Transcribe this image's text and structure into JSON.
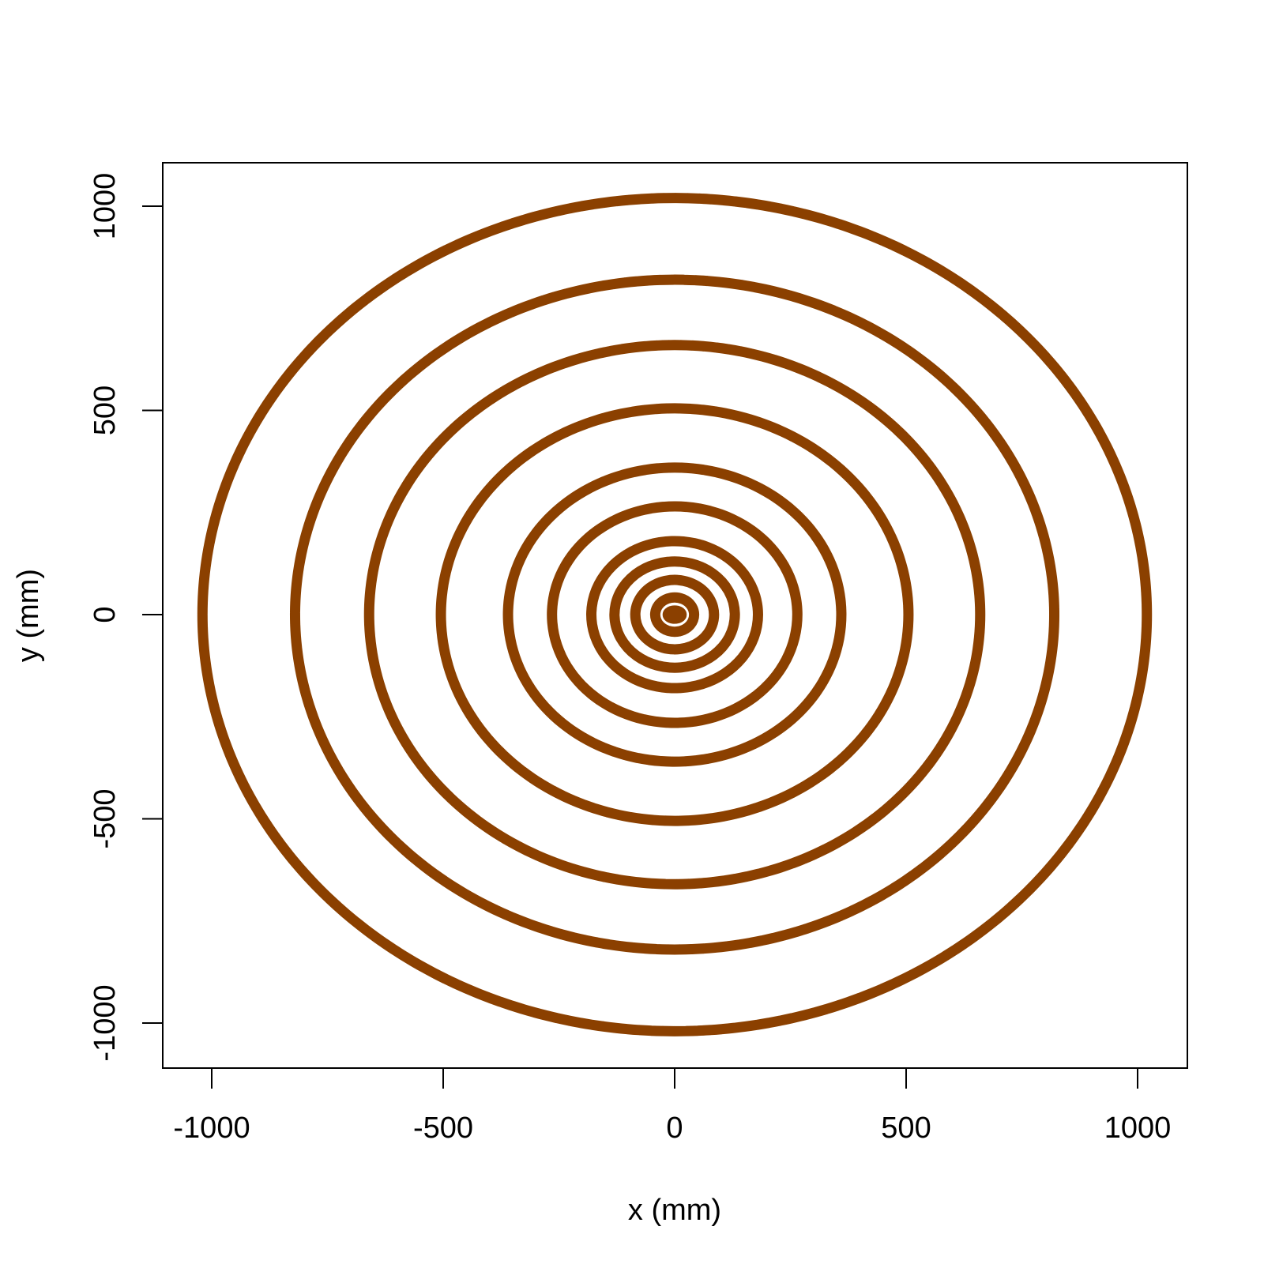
{
  "chart_data": {
    "type": "scatter",
    "xlabel": "x (mm)",
    "ylabel": "y (mm)",
    "xlim": [
      -1100,
      1100
    ],
    "ylim": [
      -1100,
      1100
    ],
    "xticks": [
      -1000,
      -500,
      0,
      500,
      1000
    ],
    "yticks": [
      -1000,
      -500,
      0,
      500,
      1000
    ],
    "xtick_labels": [
      "-1000",
      "-500",
      "0",
      "500",
      "1000"
    ],
    "ytick_labels": [
      "-1000",
      "-500",
      "0",
      "500",
      "1000"
    ],
    "grid": false,
    "legend": "none",
    "marker_color": "#8B4000",
    "series": [
      {
        "shape": "ring",
        "center": [
          0,
          0
        ],
        "radius_x": 15,
        "radius_y": 10
      },
      {
        "shape": "ring",
        "center": [
          0,
          0
        ],
        "radius_x": 42,
        "radius_y": 42
      },
      {
        "shape": "ring",
        "center": [
          0,
          0
        ],
        "radius_x": 85,
        "radius_y": 85
      },
      {
        "shape": "ring",
        "center": [
          0,
          0
        ],
        "radius_x": 130,
        "radius_y": 130
      },
      {
        "shape": "ring",
        "center": [
          0,
          0
        ],
        "radius_x": 180,
        "radius_y": 180
      },
      {
        "shape": "ring",
        "center": [
          0,
          0
        ],
        "radius_x": 265,
        "radius_y": 265
      },
      {
        "shape": "ring",
        "center": [
          0,
          0
        ],
        "radius_x": 360,
        "radius_y": 360
      },
      {
        "shape": "ring",
        "center": [
          0,
          0
        ],
        "radius_x": 505,
        "radius_y": 505
      },
      {
        "shape": "ring",
        "center": [
          0,
          0
        ],
        "radius_x": 660,
        "radius_y": 660
      },
      {
        "shape": "ring",
        "center": [
          0,
          0
        ],
        "radius_x": 820,
        "radius_y": 820
      },
      {
        "shape": "ring",
        "center": [
          0,
          0
        ],
        "radius_x": 1020,
        "radius_y": 1020
      }
    ]
  }
}
